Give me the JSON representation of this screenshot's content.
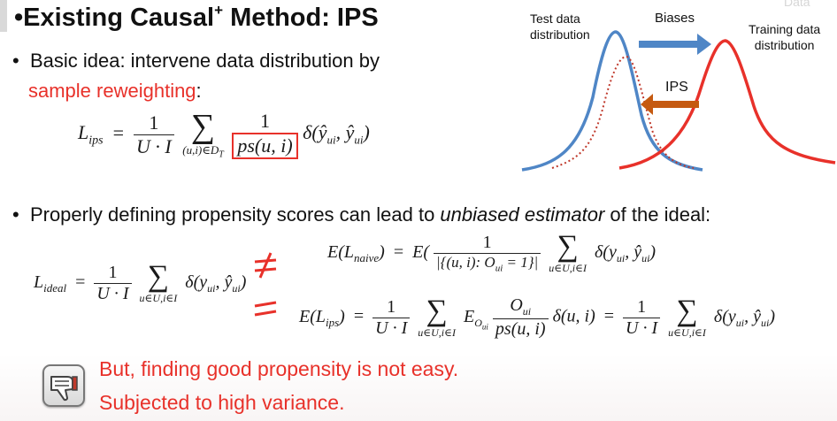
{
  "slide": {
    "title_main": "Existing Causal",
    "title_sup": "+",
    "title_rest": " Method: IPS",
    "bullet1_text": "Basic idea: intervene data distribution by",
    "bullet1_red": "sample reweighting",
    "bullet1_tail": ":",
    "bullet2_prefix": "Properly defining propensity scores can lead to ",
    "bullet2_em": "unbiased estimator",
    "bullet2_suffix": " of the ideal:",
    "warning_line1": "But, finding good propensity is not easy.",
    "warning_line2": "Subjected to high variance."
  },
  "figure": {
    "test_label_line1": "Test data",
    "test_label_line2": "distribution",
    "biases_label": "Biases",
    "training_label_line1": "Training data",
    "training_label_line2": "distribution",
    "ips_label": "IPS",
    "watermark": "Data",
    "colors": {
      "test": "#4f86c6",
      "train": "#e8312a",
      "ips_arrow": "#c55a11",
      "bias_arrow": "#4f86c6"
    }
  },
  "icons": {
    "warning": "thumbs-down-icon"
  },
  "colors": {
    "accent": "#e8312a",
    "box": "#e8312a"
  }
}
